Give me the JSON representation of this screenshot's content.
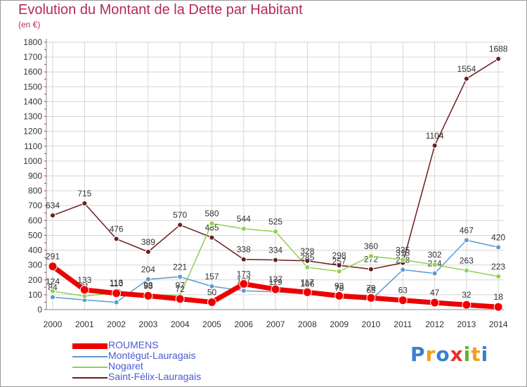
{
  "header": {
    "title": "Evolution du Montant de la Dette par Habitant",
    "subtitle": "(en €)"
  },
  "brand": {
    "letters": [
      "P",
      "r",
      "o",
      "x",
      "i",
      "t",
      "i"
    ]
  },
  "colors": {
    "title": "#b5285f",
    "legend_text": "#4a5bd4",
    "grid": "#d6d6d6",
    "axis_text": "#333333"
  },
  "chart_data": {
    "type": "line",
    "title": "Evolution du Montant de la Dette par Habitant",
    "subtitle": "(en €)",
    "x": [
      "2000",
      "2001",
      "2002",
      "2003",
      "2004",
      "2005",
      "2006",
      "2007",
      "2008",
      "2009",
      "2010",
      "2011",
      "2012",
      "2013",
      "2014"
    ],
    "ylim": [
      0,
      1800
    ],
    "yticks": [
      0,
      100,
      200,
      300,
      400,
      500,
      600,
      700,
      800,
      900,
      1000,
      1100,
      1200,
      1300,
      1400,
      1500,
      1600,
      1700,
      1800
    ],
    "grid": true,
    "legend_position": "bottom-left",
    "series": [
      {
        "name": "Saint-Félix-Lauragais",
        "color": "#6b1d1d",
        "values": [
          634,
          715,
          476,
          389,
          570,
          485,
          338,
          334,
          328,
          298,
          272,
          315,
          1104,
          1554,
          1688
        ]
      },
      {
        "name": "Montégut-Lauragais",
        "color": "#5a9ad0",
        "values": [
          84,
          65,
          49,
          204,
          221,
          157,
          127,
          119,
          106,
          78,
          65,
          268,
          244,
          467,
          420
        ]
      },
      {
        "name": "Nogaret",
        "color": "#8fd14f",
        "values": [
          124,
          91,
          113,
          98,
          97,
          580,
          544,
          525,
          285,
          257,
          360,
          335,
          302,
          263,
          223
        ]
      },
      {
        "name": "ROUMENS",
        "color": "#ee0000",
        "values": [
          291,
          133,
          110,
          93,
          72,
          50,
          173,
          137,
          117,
          93,
          79,
          63,
          47,
          32,
          18
        ]
      }
    ],
    "legend": [
      "ROUMENS",
      "Montégut-Lauragais",
      "Nogaret",
      "Saint-Félix-Lauragais"
    ]
  }
}
